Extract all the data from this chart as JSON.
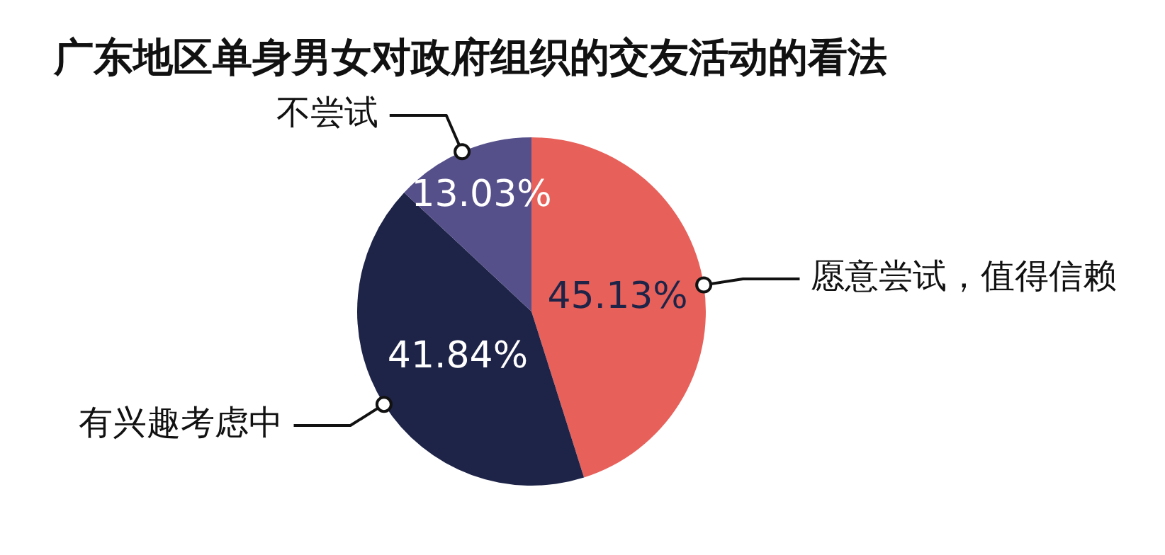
{
  "chart_data": {
    "type": "pie",
    "title": "广东地区单身男女对政府组织的交友活动的看法",
    "categories": [
      "愿意尝试，值得信赖",
      "有兴趣考虑中",
      "不尝试"
    ],
    "values": [
      45.13,
      41.84,
      13.03
    ],
    "colors": [
      "#e8605a",
      "#1e2448",
      "#56508a"
    ],
    "value_labels": [
      "45.13%",
      "41.84%",
      "13.03%"
    ]
  }
}
